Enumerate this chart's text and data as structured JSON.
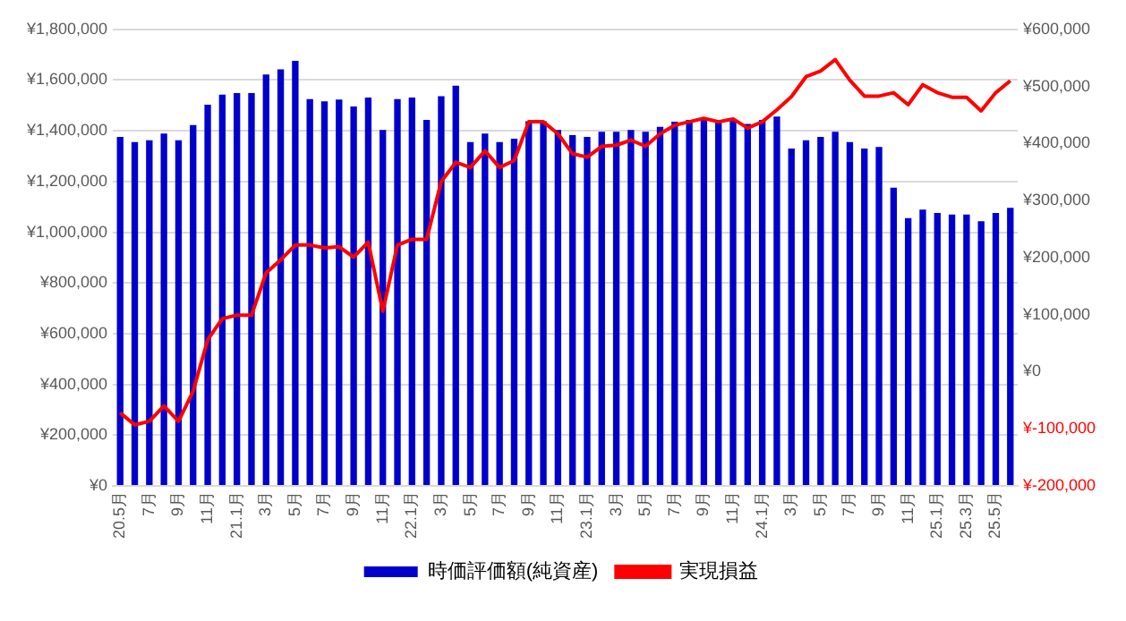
{
  "chart_data": {
    "type": "bar",
    "categories": [
      "20.5月",
      null,
      "7月",
      null,
      "9月",
      null,
      "11月",
      null,
      "21.1月",
      null,
      "3月",
      null,
      "5月",
      null,
      "7月",
      null,
      "9月",
      null,
      "11月",
      null,
      "22.1月",
      null,
      "3月",
      null,
      "5月",
      null,
      "7月",
      null,
      "9月",
      null,
      "11月",
      null,
      "23.1月",
      null,
      "3月",
      null,
      "5月",
      null,
      "7月",
      null,
      "9月",
      null,
      "11月",
      null,
      "24.1月",
      null,
      "3月",
      null,
      "5月",
      null,
      "7月",
      null,
      "9月",
      null,
      "11月",
      null,
      "25.1月",
      null,
      "25.3月",
      null,
      "25.5月",
      null
    ],
    "series": [
      {
        "name": "時価評価額(純資産)",
        "color": "#0000cc",
        "values": [
          1376000,
          1356000,
          1363000,
          1389000,
          1363000,
          1423000,
          1503000,
          1543000,
          1549000,
          1549000,
          1622000,
          1642000,
          1676000,
          1525000,
          1516000,
          1523000,
          1496000,
          1531000,
          1403000,
          1525000,
          1531000,
          1443000,
          1536000,
          1578000,
          1356000,
          1389000,
          1356000,
          1369000,
          1438000,
          1438000,
          1403000,
          1383000,
          1376000,
          1396000,
          1396000,
          1403000,
          1396000,
          1416000,
          1436000,
          1443000,
          1449000,
          1436000,
          1443000,
          1427000,
          1443000,
          1456000,
          1330000,
          1363000,
          1376000,
          1396000,
          1356000,
          1330000,
          1336000,
          1176000,
          1056000,
          1089000,
          1076000,
          1070000,
          1070000,
          1043000,
          1076000,
          1096000
        ]
      },
      {
        "name": "実現損益",
        "type": "line",
        "axis": "y2",
        "color": "#ff0000",
        "values": [
          -72000,
          -93000,
          -87000,
          -60000,
          -87000,
          -34000,
          56000,
          93000,
          99000,
          99000,
          173000,
          196000,
          222000,
          222000,
          217000,
          219000,
          201000,
          227000,
          106000,
          222000,
          232000,
          232000,
          333000,
          367000,
          358000,
          387000,
          358000,
          370000,
          438000,
          438000,
          417000,
          382000,
          376000,
          395000,
          397000,
          406000,
          395000,
          417000,
          432000,
          438000,
          444000,
          438000,
          443000,
          427000,
          438000,
          459000,
          482000,
          517000,
          527000,
          547000,
          511000,
          483000,
          483000,
          489000,
          468000,
          503000,
          489000,
          481000,
          481000,
          457000,
          489000,
          510000
        ]
      }
    ],
    "ylim": [
      0,
      1800000
    ],
    "yticks": [
      {
        "value": 0,
        "label": "¥0"
      },
      {
        "value": 200000,
        "label": "¥200,000"
      },
      {
        "value": 400000,
        "label": "¥400,000"
      },
      {
        "value": 600000,
        "label": "¥600,000"
      },
      {
        "value": 800000,
        "label": "¥800,000"
      },
      {
        "value": 1000000,
        "label": "¥1,000,000"
      },
      {
        "value": 1200000,
        "label": "¥1,200,000"
      },
      {
        "value": 1400000,
        "label": "¥1,400,000"
      },
      {
        "value": 1600000,
        "label": "¥1,600,000"
      },
      {
        "value": 1800000,
        "label": "¥1,800,000"
      }
    ],
    "y2lim": [
      -200000,
      600000
    ],
    "y2ticks": [
      {
        "value": -200000,
        "label": "¥-200,000"
      },
      {
        "value": -100000,
        "label": "¥-100,000"
      },
      {
        "value": 0,
        "label": "¥0"
      },
      {
        "value": 100000,
        "label": "¥100,000"
      },
      {
        "value": 200000,
        "label": "¥200,000"
      },
      {
        "value": 300000,
        "label": "¥300,000"
      },
      {
        "value": 400000,
        "label": "¥400,000"
      },
      {
        "value": 500000,
        "label": "¥500,000"
      },
      {
        "value": 600000,
        "label": "¥600,000"
      }
    ],
    "grid": "y",
    "legend": "bottom",
    "marker": "none"
  }
}
